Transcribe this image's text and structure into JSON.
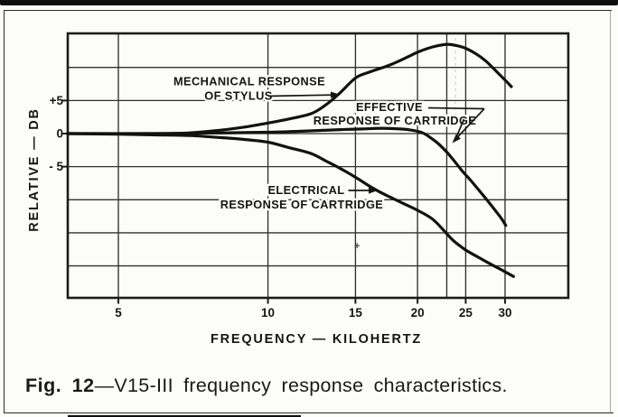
{
  "page": {
    "background": "#fcfcfa",
    "ink": "#141414"
  },
  "figure": {
    "caption_bold": "Fig. 12",
    "caption_rest": "—V15-III frequency response characteristics."
  },
  "chart_data": {
    "type": "line",
    "title": "",
    "xlabel": "FREQUENCY — KILOHERTZ",
    "ylabel": "RELATIVE — DB",
    "x_scale": "log",
    "xlim_khz": [
      3.95,
      40
    ],
    "ylim_db": [
      -25,
      15
    ],
    "grid": true,
    "x_ticks": [
      5,
      10,
      15,
      20,
      25,
      30
    ],
    "x_gridlines_khz": [
      5,
      10,
      15,
      20,
      22.9,
      25,
      30
    ],
    "y_tick_labels": [
      "+5",
      "0",
      "- 5"
    ],
    "y_tick_values": [
      5,
      0,
      -5
    ],
    "y_gridlines_db": [
      10,
      5,
      0,
      -5,
      -10,
      -15,
      -20
    ],
    "legend": "labels-with-arrows-inside-plot",
    "series": [
      {
        "id": "mechanical-response-curve",
        "name": "MECHANICAL RESPONSE OF STYLUS",
        "points": [
          [
            3.95,
            0
          ],
          [
            5,
            0
          ],
          [
            6,
            0
          ],
          [
            6.9,
            0.1
          ],
          [
            8,
            0.5
          ],
          [
            9,
            1.0
          ],
          [
            10,
            1.6
          ],
          [
            11,
            2.2
          ],
          [
            12.2,
            3.0
          ],
          [
            13,
            4.2
          ],
          [
            13.9,
            6.0
          ],
          [
            15,
            8.4
          ],
          [
            16,
            9.3
          ],
          [
            17.5,
            10.3
          ],
          [
            19,
            11.5
          ],
          [
            20,
            12.3
          ],
          [
            21,
            12.9
          ],
          [
            22,
            13.3
          ],
          [
            23,
            13.5
          ],
          [
            24,
            13.3
          ],
          [
            25,
            12.9
          ],
          [
            26.3,
            12.0
          ],
          [
            27.5,
            10.9
          ],
          [
            29,
            9.2
          ],
          [
            30,
            8.1
          ],
          [
            30.9,
            7.1
          ]
        ]
      },
      {
        "id": "effective-response-curve",
        "name": "EFFECTIVE RESPONSE OF CARTRIDGE",
        "points": [
          [
            3.95,
            0
          ],
          [
            6,
            0
          ],
          [
            8,
            0.1
          ],
          [
            10,
            0.2
          ],
          [
            12,
            0.4
          ],
          [
            14,
            0.6
          ],
          [
            15.5,
            0.7
          ],
          [
            17,
            0.8
          ],
          [
            18.5,
            0.7
          ],
          [
            19.5,
            0.5
          ],
          [
            20.5,
            0.1
          ],
          [
            21.3,
            -0.7
          ],
          [
            22,
            -1.5
          ],
          [
            22.9,
            -2.8
          ],
          [
            23.8,
            -4.3
          ],
          [
            24.7,
            -5.8
          ],
          [
            25.6,
            -7.1
          ],
          [
            26.6,
            -8.6
          ],
          [
            27.7,
            -10.2
          ],
          [
            28.8,
            -11.8
          ],
          [
            29.6,
            -13.0
          ],
          [
            30.1,
            -13.9
          ]
        ]
      },
      {
        "id": "electrical-response-curve",
        "name": "ELECTRICAL RESPONSE OF CARTRIDGE",
        "points": [
          [
            3.95,
            0
          ],
          [
            5,
            -0.1
          ],
          [
            6,
            -0.2
          ],
          [
            7,
            -0.3
          ],
          [
            8,
            -0.6
          ],
          [
            9,
            -0.9
          ],
          [
            10,
            -1.3
          ],
          [
            11,
            -2.1
          ],
          [
            12.2,
            -3.0
          ],
          [
            13.2,
            -4.3
          ],
          [
            14,
            -5.3
          ],
          [
            15,
            -6.6
          ],
          [
            16.3,
            -8.3
          ],
          [
            17.5,
            -9.5
          ],
          [
            19,
            -10.8
          ],
          [
            20,
            -11.6
          ],
          [
            21.5,
            -13.0
          ],
          [
            23,
            -15.3
          ],
          [
            23.7,
            -16.3
          ],
          [
            25,
            -17.6
          ],
          [
            26.5,
            -18.7
          ],
          [
            28,
            -19.7
          ],
          [
            29.5,
            -20.6
          ],
          [
            31.2,
            -21.6
          ]
        ]
      }
    ],
    "annotations": [
      {
        "id": "mech",
        "lines": [
          "MECHANICAL RESPONSE",
          "OF STYLUS"
        ]
      },
      {
        "id": "eff",
        "lines": [
          "EFFECTIVE",
          "RESPONSE OF CARTRIDGE"
        ]
      },
      {
        "id": "elec",
        "lines": [
          "ELECTRICAL",
          "RESPONSE OF CARTRIDGE"
        ]
      }
    ]
  }
}
